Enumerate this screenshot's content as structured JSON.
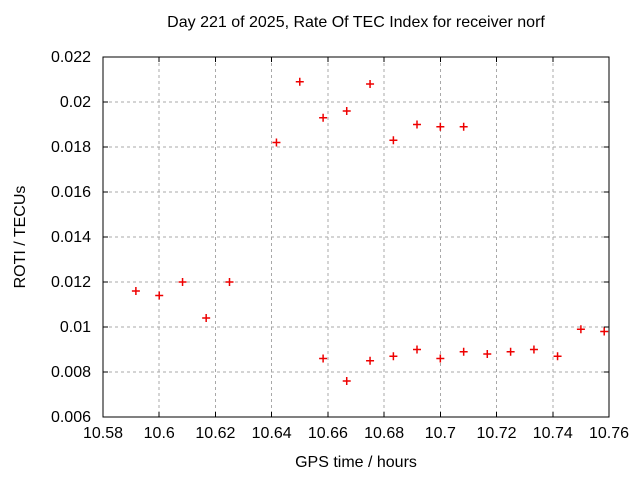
{
  "chart_data": {
    "type": "scatter",
    "title": "Day 221 of 2025, Rate Of TEC Index for receiver norf",
    "xlabel": "GPS time / hours",
    "ylabel": "ROTI / TECUs",
    "xlim": [
      10.58,
      10.76
    ],
    "ylim": [
      0.006,
      0.022
    ],
    "xtick_values": [
      10.58,
      10.6,
      10.62,
      10.64,
      10.66,
      10.68,
      10.7,
      10.72,
      10.74,
      10.76
    ],
    "xtick_labels": [
      "10.58",
      "10.6",
      "10.62",
      "10.64",
      "10.66",
      "10.68",
      "10.7",
      "10.72",
      "10.74",
      "10.76"
    ],
    "ytick_values": [
      0.006,
      0.008,
      0.01,
      0.012,
      0.014,
      0.016,
      0.018,
      0.02,
      0.022
    ],
    "ytick_labels": [
      "0.006",
      "0.008",
      "0.01",
      "0.012",
      "0.014",
      "0.016",
      "0.018",
      "0.02",
      "0.022"
    ],
    "grid": true,
    "marker": {
      "shape": "plus",
      "color": "#ee0000",
      "size": 8
    },
    "points": [
      [
        10.5917,
        0.0116
      ],
      [
        10.6,
        0.0114
      ],
      [
        10.6083,
        0.012
      ],
      [
        10.6167,
        0.0104
      ],
      [
        10.625,
        0.012
      ],
      [
        10.6417,
        0.0182
      ],
      [
        10.65,
        0.0209
      ],
      [
        10.6583,
        0.0193
      ],
      [
        10.6583,
        0.0086
      ],
      [
        10.6667,
        0.0196
      ],
      [
        10.6667,
        0.0076
      ],
      [
        10.675,
        0.0208
      ],
      [
        10.675,
        0.0085
      ],
      [
        10.6833,
        0.0183
      ],
      [
        10.6833,
        0.0087
      ],
      [
        10.6917,
        0.019
      ],
      [
        10.6917,
        0.009
      ],
      [
        10.7,
        0.0189
      ],
      [
        10.7,
        0.0086
      ],
      [
        10.7083,
        0.0189
      ],
      [
        10.7083,
        0.0089
      ],
      [
        10.7167,
        0.0088
      ],
      [
        10.725,
        0.0089
      ],
      [
        10.7333,
        0.009
      ],
      [
        10.7417,
        0.0087
      ],
      [
        10.75,
        0.0099
      ],
      [
        10.7583,
        0.0098
      ]
    ]
  },
  "colors": {
    "background": "#ffffff",
    "axis": "#000000",
    "grid": "#a8a8a8",
    "text": "#000000",
    "marker": "#ee0000"
  }
}
